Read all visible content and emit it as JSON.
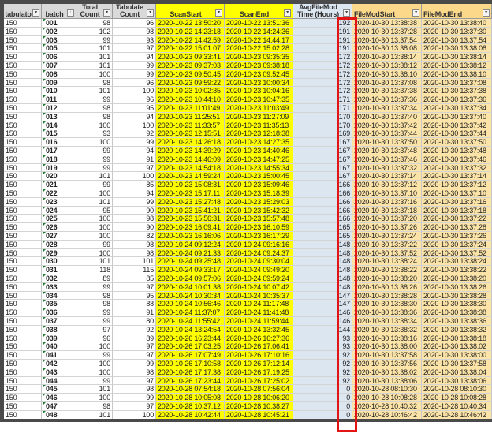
{
  "columns": [
    {
      "key": "tabulator",
      "label": "tabulato",
      "style": "gray"
    },
    {
      "key": "batch",
      "label": "batch",
      "style": "gray",
      "filter": "sort"
    },
    {
      "key": "total",
      "label": "Total\nCount",
      "style": "gray"
    },
    {
      "key": "tabulate",
      "label": "Tabulate\nCount",
      "style": "gray"
    },
    {
      "key": "scan_start",
      "label": "ScanStart",
      "style": "yellow"
    },
    {
      "key": "scan_end",
      "label": "ScanEnd",
      "style": "yellow"
    },
    {
      "key": "avg",
      "label": "AvgFileMod\nTime (Hours)",
      "style": "blue"
    },
    {
      "key": "fm_start",
      "label": "FileModStart",
      "style": "orange"
    },
    {
      "key": "fm_end",
      "label": "FileModEnd",
      "style": "orange"
    }
  ],
  "colors": {
    "scan_fill": "#ffff00",
    "avg_fill": "#dce6f1",
    "filemod_fill": "#fce4a8",
    "highlight_box": "#e31414",
    "header_fill": "#d9d9d9"
  },
  "highlight": {
    "column": "avg",
    "shape": "red-rectangle"
  },
  "rows": [
    [
      "150",
      "001",
      "98",
      "96",
      "2020-10-22 13:50:20",
      "2020-10-22 13:51:36",
      "192",
      "2020-10-30 13:38:38",
      "2020-10-30 13:38:40"
    ],
    [
      "150",
      "002",
      "102",
      "98",
      "2020-10-22 14:23:18",
      "2020-10-22 14:24:36",
      "191",
      "2020-10-30 13:37:28",
      "2020-10-30 13:37:30"
    ],
    [
      "150",
      "003",
      "99",
      "93",
      "2020-10-22 14:42:59",
      "2020-10-22 14:44:17",
      "191",
      "2020-10-30 13:37:54",
      "2020-10-30 13:37:54"
    ],
    [
      "150",
      "005",
      "101",
      "97",
      "2020-10-22 15:01:07",
      "2020-10-22 15:02:28",
      "191",
      "2020-10-30 13:38:08",
      "2020-10-30 13:38:08"
    ],
    [
      "150",
      "006",
      "101",
      "94",
      "2020-10-23 09:33:41",
      "2020-10-23 09:35:35",
      "172",
      "2020-10-30 13:38:14",
      "2020-10-30 13:38:14"
    ],
    [
      "150",
      "007",
      "101",
      "99",
      "2020-10-23 09:37:03",
      "2020-10-23 09:38:18",
      "172",
      "2020-10-30 13:38:12",
      "2020-10-30 13:38:12"
    ],
    [
      "150",
      "008",
      "100",
      "99",
      "2020-10-23 09:50:45",
      "2020-10-23 09:52:45",
      "172",
      "2020-10-30 13:38:10",
      "2020-10-30 13:38:10"
    ],
    [
      "150",
      "009",
      "98",
      "96",
      "2020-10-23 09:59:22",
      "2020-10-23 10:00:34",
      "172",
      "2020-10-30 13:37:08",
      "2020-10-30 13:37:08"
    ],
    [
      "150",
      "010",
      "101",
      "100",
      "2020-10-23 10:02:35",
      "2020-10-23 10:04:16",
      "172",
      "2020-10-30 13:37:38",
      "2020-10-30 13:37:38"
    ],
    [
      "150",
      "011",
      "99",
      "96",
      "2020-10-23 10:44:10",
      "2020-10-23 10:47:35",
      "171",
      "2020-10-30 13:37:36",
      "2020-10-30 13:37:36"
    ],
    [
      "150",
      "012",
      "98",
      "95",
      "2020-10-23 11:01:49",
      "2020-10-23 11:03:49",
      "171",
      "2020-10-30 13:37:34",
      "2020-10-30 13:37:34"
    ],
    [
      "150",
      "013",
      "98",
      "94",
      "2020-10-23 11:25:51",
      "2020-10-23 11:27:09",
      "170",
      "2020-10-30 13:37:40",
      "2020-10-30 13:37:40"
    ],
    [
      "150",
      "014",
      "100",
      "100",
      "2020-10-23 11:33:57",
      "2020-10-23 11:35:13",
      "170",
      "2020-10-30 13:37:42",
      "2020-10-30 13:37:42"
    ],
    [
      "150",
      "015",
      "93",
      "92",
      "2020-10-23 12:15:51",
      "2020-10-23 12:18:38",
      "169",
      "2020-10-30 13:37:44",
      "2020-10-30 13:37:44"
    ],
    [
      "150",
      "016",
      "100",
      "99",
      "2020-10-23 14:26:18",
      "2020-10-23 14:27:35",
      "167",
      "2020-10-30 13:37:50",
      "2020-10-30 13:37:50"
    ],
    [
      "150",
      "017",
      "99",
      "94",
      "2020-10-23 14:39:29",
      "2020-10-23 14:40:46",
      "167",
      "2020-10-30 13:37:48",
      "2020-10-30 13:37:48"
    ],
    [
      "150",
      "018",
      "99",
      "91",
      "2020-10-23 14:46:09",
      "2020-10-23 14:47:25",
      "167",
      "2020-10-30 13:37:46",
      "2020-10-30 13:37:46"
    ],
    [
      "150",
      "019",
      "99",
      "97",
      "2020-10-23 14:54:18",
      "2020-10-23 14:55:34",
      "167",
      "2020-10-30 13:37:32",
      "2020-10-30 13:37:32"
    ],
    [
      "150",
      "020",
      "101",
      "100",
      "2020-10-23 14:59:24",
      "2020-10-23 15:00:45",
      "167",
      "2020-10-30 13:37:14",
      "2020-10-30 13:37:14"
    ],
    [
      "150",
      "021",
      "99",
      "85",
      "2020-10-23 15:08:31",
      "2020-10-23 15:09:46",
      "166",
      "2020-10-30 13:37:12",
      "2020-10-30 13:37:12"
    ],
    [
      "150",
      "022",
      "100",
      "94",
      "2020-10-23 15:17:11",
      "2020-10-23 15:18:39",
      "166",
      "2020-10-30 13:37:10",
      "2020-10-30 13:37:10"
    ],
    [
      "150",
      "023",
      "101",
      "99",
      "2020-10-23 15:27:48",
      "2020-10-23 15:29:03",
      "166",
      "2020-10-30 13:37:16",
      "2020-10-30 13:37:16"
    ],
    [
      "150",
      "024",
      "95",
      "90",
      "2020-10-23 15:41:21",
      "2020-10-23 15:42:32",
      "166",
      "2020-10-30 13:37:18",
      "2020-10-30 13:37:18"
    ],
    [
      "150",
      "025",
      "100",
      "98",
      "2020-10-23 15:56:31",
      "2020-10-23 15:57:48",
      "166",
      "2020-10-30 13:37:20",
      "2020-10-30 13:37:22"
    ],
    [
      "150",
      "026",
      "100",
      "90",
      "2020-10-23 16:09:41",
      "2020-10-23 16:10:59",
      "165",
      "2020-10-30 13:37:26",
      "2020-10-30 13:37:28"
    ],
    [
      "150",
      "027",
      "100",
      "82",
      "2020-10-23 16:16:06",
      "2020-10-23 16:17:29",
      "165",
      "2020-10-30 13:37:24",
      "2020-10-30 13:37:26"
    ],
    [
      "150",
      "028",
      "99",
      "98",
      "2020-10-24 09:12:24",
      "2020-10-24 09:16:16",
      "148",
      "2020-10-30 13:37:22",
      "2020-10-30 13:37:24"
    ],
    [
      "150",
      "029",
      "100",
      "98",
      "2020-10-24 09:21:33",
      "2020-10-24 09:24:37",
      "148",
      "2020-10-30 13:37:52",
      "2020-10-30 13:37:52"
    ],
    [
      "150",
      "030",
      "101",
      "101",
      "2020-10-24 09:25:48",
      "2020-10-24 09:30:04",
      "148",
      "2020-10-30 13:38:24",
      "2020-10-30 13:38:24"
    ],
    [
      "150",
      "031",
      "118",
      "115",
      "2020-10-24 09:33:17",
      "2020-10-24 09:49:20",
      "148",
      "2020-10-30 13:38:22",
      "2020-10-30 13:38:22"
    ],
    [
      "150",
      "032",
      "89",
      "85",
      "2020-10-24 09:57:06",
      "2020-10-24 09:59:24",
      "148",
      "2020-10-30 13:38:20",
      "2020-10-30 13:38:20"
    ],
    [
      "150",
      "033",
      "99",
      "97",
      "2020-10-24 10:01:38",
      "2020-10-24 10:07:42",
      "148",
      "2020-10-30 13:38:26",
      "2020-10-30 13:38:26"
    ],
    [
      "150",
      "034",
      "98",
      "95",
      "2020-10-24 10:30:34",
      "2020-10-24 10:35:37",
      "147",
      "2020-10-30 13:38:28",
      "2020-10-30 13:38:28"
    ],
    [
      "150",
      "035",
      "98",
      "88",
      "2020-10-24 10:56:46",
      "2020-10-24 11:17:48",
      "147",
      "2020-10-30 13:38:30",
      "2020-10-30 13:38:30"
    ],
    [
      "150",
      "036",
      "99",
      "91",
      "2020-10-24 11:37:07",
      "2020-10-24 11:41:48",
      "146",
      "2020-10-30 13:38:36",
      "2020-10-30 13:38:38"
    ],
    [
      "150",
      "037",
      "99",
      "80",
      "2020-10-24 11:55:42",
      "2020-10-24 11:59:44",
      "146",
      "2020-10-30 13:38:34",
      "2020-10-30 13:38:36"
    ],
    [
      "150",
      "038",
      "97",
      "92",
      "2020-10-24 13:24:54",
      "2020-10-24 13:32:45",
      "144",
      "2020-10-30 13:38:32",
      "2020-10-30 13:38:32"
    ],
    [
      "150",
      "039",
      "96",
      "89",
      "2020-10-26 16:23:44",
      "2020-10-26 16:27:36",
      "93",
      "2020-10-30 13:38:16",
      "2020-10-30 13:38:18"
    ],
    [
      "150",
      "040",
      "100",
      "97",
      "2020-10-26 17:03:25",
      "2020-10-26 17:06:41",
      "93",
      "2020-10-30 13:38:00",
      "2020-10-30 13:38:02"
    ],
    [
      "150",
      "041",
      "99",
      "97",
      "2020-10-26 17:07:49",
      "2020-10-26 17:10:16",
      "92",
      "2020-10-30 13:37:58",
      "2020-10-30 13:38:00"
    ],
    [
      "150",
      "042",
      "100",
      "99",
      "2020-10-26 17:10:58",
      "2020-10-26 17:12:14",
      "92",
      "2020-10-30 13:37:56",
      "2020-10-30 13:37:58"
    ],
    [
      "150",
      "043",
      "100",
      "98",
      "2020-10-26 17:17:38",
      "2020-10-26 17:19:25",
      "92",
      "2020-10-30 13:38:02",
      "2020-10-30 13:38:04"
    ],
    [
      "150",
      "044",
      "99",
      "97",
      "2020-10-26 17:23:44",
      "2020-10-26 17:25:02",
      "92",
      "2020-10-30 13:38:06",
      "2020-10-30 13:38:06"
    ],
    [
      "150",
      "045",
      "101",
      "98",
      "2020-10-28 07:54:18",
      "2020-10-28 07:56:04",
      "0",
      "2020-10-28 08:10:30",
      "2020-10-28 08:10:30"
    ],
    [
      "150",
      "046",
      "100",
      "99",
      "2020-10-28 10:05:08",
      "2020-10-28 10:06:20",
      "0",
      "2020-10-28 10:08:28",
      "2020-10-28 10:08:28"
    ],
    [
      "150",
      "047",
      "98",
      "97",
      "2020-10-28 10:37:12",
      "2020-10-28 10:38:27",
      "0",
      "2020-10-28 10:40:32",
      "2020-10-28 10:40:34"
    ],
    [
      "150",
      "048",
      "101",
      "100",
      "2020-10-28 10:42:44",
      "2020-10-28 10:45:21",
      "0",
      "2020-10-28 10:46:42",
      "2020-10-28 10:46:42"
    ]
  ]
}
